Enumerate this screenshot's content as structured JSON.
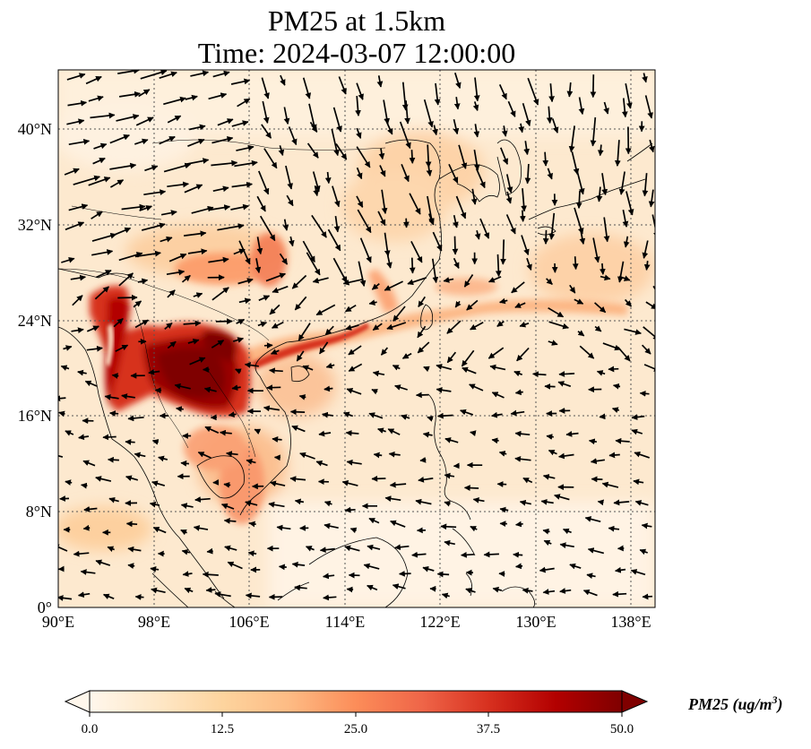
{
  "title": {
    "line1": "PM25 at 1.5km",
    "line2": "Time: 2024-03-07 12:00:00"
  },
  "map": {
    "projection": "PlateCarree",
    "lon_range": [
      90,
      140
    ],
    "lat_range": [
      0,
      45
    ],
    "gridlines": "dotted",
    "lon_ticks": [
      "90°E",
      "98°E",
      "106°E",
      "114°E",
      "122°E",
      "130°E",
      "138°E"
    ],
    "lat_ticks": [
      "0°",
      "8°N",
      "16°N",
      "24°N",
      "32°N",
      "40°N"
    ],
    "features": [
      "coastlines",
      "country borders"
    ],
    "overlay": "wind vectors (quiver)"
  },
  "colorbar": {
    "colormap": "OrRd",
    "ticks": [
      "0.0",
      "12.5",
      "25.0",
      "37.5",
      "50.0"
    ],
    "label_main": "PM25 (ug/m",
    "label_sup": "3",
    "label_end": ")",
    "extend": "both",
    "colors": [
      "#fff7ec",
      "#fee8c8",
      "#fdd49e",
      "#fdbb84",
      "#fc8d59",
      "#ef6548",
      "#d7301f",
      "#b30000",
      "#7f0000"
    ]
  },
  "regions": [
    "high PM25 over Myanmar / northern Thailand / Laos / northern Vietnam",
    "moderate band along southern China coast to Taiwan",
    "light haze over North China Plain and south of Japan"
  ]
}
